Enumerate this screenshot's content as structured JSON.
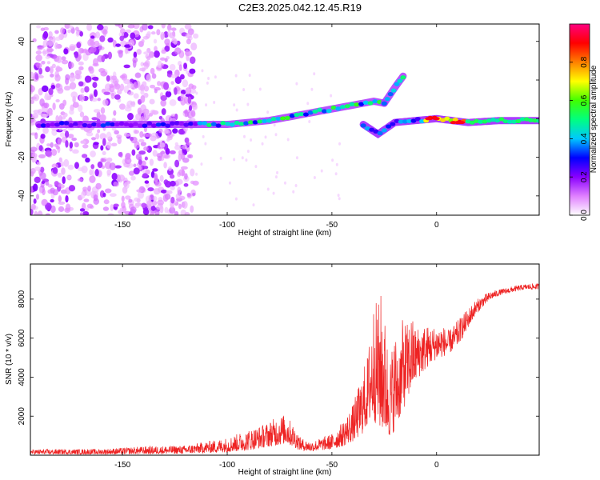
{
  "figure": {
    "title": "C2E3.2025.042.12.45.R19"
  },
  "chart_data": [
    {
      "type": "heatmap",
      "id": "spectrogram",
      "xlabel": "Height of straight line (km)",
      "ylabel": "Frequency (Hz)",
      "xlim": [
        -194,
        49
      ],
      "ylim": [
        -50,
        49
      ],
      "x_ticks": [
        -150,
        -100,
        -50,
        0
      ],
      "x_tick_labels": [
        "-150",
        "-100",
        "-50",
        "0"
      ],
      "y_ticks": [
        -40,
        -20,
        0,
        20,
        40
      ],
      "y_tick_labels": [
        "-40",
        "-20",
        "0",
        "20",
        "40"
      ],
      "colorbar": {
        "label": "Normalized spectral amplitude",
        "range": [
          0,
          1
        ],
        "ticks": [
          0.0,
          0.2,
          0.4,
          0.6,
          0.8
        ],
        "tick_labels": [
          "0.0",
          "0.2",
          "0.4",
          "0.6",
          "0.8"
        ],
        "colors": [
          "#ffffff",
          "#e080ff",
          "#8a00ff",
          "#0000ff",
          "#00c8ff",
          "#00ff80",
          "#40ff00",
          "#ffff00",
          "#ff8000",
          "#ff0000",
          "#ff0080"
        ]
      },
      "noise_region_x": [
        -194,
        -115
      ],
      "main_track": [
        {
          "x": -190,
          "y": -3
        },
        {
          "x": -170,
          "y": -3
        },
        {
          "x": -150,
          "y": -3
        },
        {
          "x": -130,
          "y": -3
        },
        {
          "x": -115,
          "y": -3
        },
        {
          "x": -100,
          "y": -3
        },
        {
          "x": -80,
          "y": -1
        },
        {
          "x": -65,
          "y": 2
        },
        {
          "x": -50,
          "y": 5
        },
        {
          "x": -40,
          "y": 7
        },
        {
          "x": -30,
          "y": 9
        },
        {
          "x": -25,
          "y": 8
        }
      ],
      "upper_branch": [
        {
          "x": -25,
          "y": 8
        },
        {
          "x": -20,
          "y": 16
        },
        {
          "x": -16,
          "y": 22
        }
      ],
      "lower_branch": [
        {
          "x": -35,
          "y": -3
        },
        {
          "x": -28,
          "y": -8
        },
        {
          "x": -20,
          "y": -2
        },
        {
          "x": -10,
          "y": -1
        },
        {
          "x": 0,
          "y": 0
        },
        {
          "x": 15,
          "y": -2
        },
        {
          "x": 30,
          "y": -1
        },
        {
          "x": 49,
          "y": -1
        }
      ]
    },
    {
      "type": "line",
      "id": "snr",
      "xlabel": "Height of straight line (km)",
      "ylabel": "SNR (10 * v/v)",
      "xlim": [
        -194,
        49
      ],
      "ylim": [
        0,
        9800
      ],
      "x_ticks": [
        -150,
        -100,
        -50,
        0
      ],
      "x_tick_labels": [
        "-150",
        "-100",
        "-50",
        "0"
      ],
      "y_ticks": [
        2000,
        4000,
        6000,
        8000
      ],
      "y_tick_labels": [
        "2000",
        "4000",
        "6000",
        "8000"
      ],
      "series": [
        {
          "color": "#ee2222",
          "envelope": {
            "x": [
              -194,
              -160,
              -140,
              -120,
              -110,
              -100,
              -90,
              -82,
              -76,
              -72,
              -68,
              -65,
              -60,
              -55,
              -50,
              -45,
              -40,
              -36,
              -33,
              -30,
              -28,
              -26,
              -24,
              -22,
              -20,
              -18,
              -16,
              -14,
              -12,
              -10,
              -6,
              -2,
              2,
              6,
              10,
              14,
              18,
              22,
              26,
              30,
              34,
              38,
              42,
              45,
              49
            ],
            "high": [
              300,
              320,
              450,
              500,
              700,
              900,
              1300,
              1600,
              2000,
              2100,
              1500,
              900,
              700,
              900,
              1100,
              1700,
              2600,
              4000,
              5200,
              8000,
              7800,
              8600,
              6200,
              5200,
              6400,
              5800,
              7100,
              6800,
              7200,
              6600,
              6700,
              6600,
              6700,
              6400,
              6900,
              7400,
              7900,
              8200,
              8400,
              8500,
              8600,
              8700,
              8750,
              8800,
              8800
            ],
            "low": [
              50,
              50,
              60,
              80,
              120,
              150,
              250,
              400,
              500,
              600,
              400,
              250,
              200,
              250,
              300,
              450,
              700,
              1000,
              1500,
              1800,
              1400,
              1200,
              1000,
              900,
              1300,
              1800,
              2300,
              2800,
              3300,
              3800,
              4300,
              4800,
              5000,
              5200,
              5600,
              6300,
              7100,
              7600,
              8000,
              8200,
              8300,
              8400,
              8500,
              8500,
              8500
            ]
          }
        }
      ]
    }
  ]
}
